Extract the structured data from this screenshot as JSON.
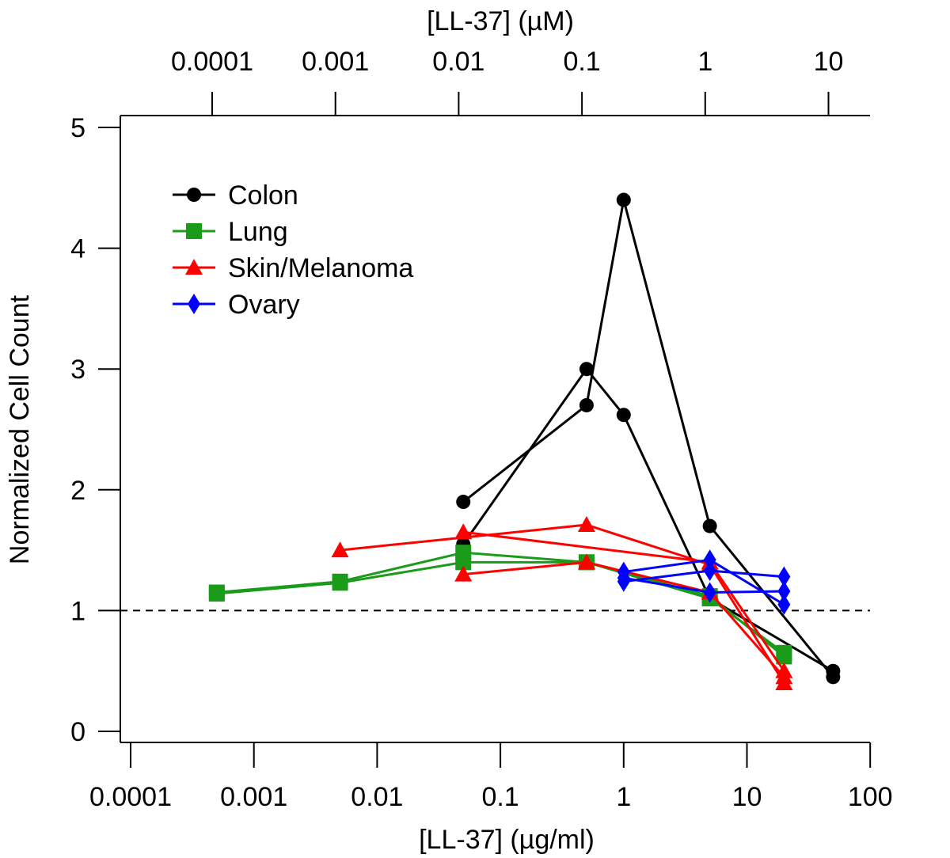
{
  "chart_data": {
    "type": "line",
    "xlabel": "[LL-37] (µg/ml)",
    "top_xlabel": "[LL-37] (µM)",
    "ylabel": "Normalized Cell Count",
    "x_scale": "log",
    "xlim": [
      0.0001,
      100
    ],
    "ylim": [
      0,
      5
    ],
    "x_ticks": [
      0.0001,
      0.001,
      0.01,
      0.1,
      1,
      10,
      100
    ],
    "x_tick_labels": [
      "0.0001",
      "0.001",
      "0.01",
      "0.1",
      "1",
      "10",
      "100"
    ],
    "top_x_ticks": [
      0.0001,
      0.001,
      0.01,
      0.1,
      1,
      10
    ],
    "top_x_tick_labels": [
      "0.0001",
      "0.001",
      "0.01",
      "0.1",
      "1",
      "10"
    ],
    "y_ticks": [
      0,
      1,
      2,
      3,
      4,
      5
    ],
    "y_tick_labels": [
      "0",
      "1",
      "2",
      "3",
      "4",
      "5"
    ],
    "reference_line": {
      "y": 1,
      "style": "dashed"
    },
    "grid": false,
    "legend_position": "top-left",
    "legend": [
      "Colon",
      "Lung",
      "Skin/Melanoma",
      "Ovary"
    ],
    "series": [
      {
        "name": "Colon",
        "color": "#000000",
        "marker": "circle",
        "x": [
          0.05,
          0.5,
          1,
          5,
          50
        ],
        "y": [
          1.9,
          2.7,
          4.4,
          1.7,
          0.45
        ]
      },
      {
        "name": "Colon",
        "color": "#000000",
        "marker": "circle",
        "x": [
          0.05,
          0.5,
          1,
          5,
          50
        ],
        "y": [
          1.55,
          3.0,
          2.62,
          1.1,
          0.5
        ]
      },
      {
        "name": "Lung",
        "color": "#1a9b1a",
        "marker": "square",
        "x": [
          0.0005,
          0.005,
          0.05,
          0.5,
          5,
          20
        ],
        "y": [
          1.15,
          1.24,
          1.48,
          1.4,
          1.12,
          0.62
        ]
      },
      {
        "name": "Lung",
        "color": "#1a9b1a",
        "marker": "square",
        "x": [
          0.0005,
          0.005,
          0.05,
          0.5,
          5,
          20
        ],
        "y": [
          1.14,
          1.23,
          1.4,
          1.4,
          1.1,
          0.65
        ]
      },
      {
        "name": "Skin/Melanoma",
        "color": "#ff0000",
        "marker": "triangle",
        "x": [
          0.005,
          0.5,
          5,
          20
        ],
        "y": [
          1.5,
          1.71,
          1.38,
          0.4
        ]
      },
      {
        "name": "Skin/Melanoma",
        "color": "#ff0000",
        "marker": "triangle",
        "x": [
          0.05,
          5,
          20
        ],
        "y": [
          1.65,
          1.4,
          0.5
        ]
      },
      {
        "name": "Skin/Melanoma",
        "color": "#ff0000",
        "marker": "triangle",
        "x": [
          0.05,
          0.5,
          5,
          20
        ],
        "y": [
          1.3,
          1.4,
          1.15,
          0.45
        ]
      },
      {
        "name": "Ovary",
        "color": "#0000ff",
        "marker": "diamond",
        "x": [
          1,
          5,
          20
        ],
        "y": [
          1.32,
          1.42,
          1.05
        ]
      },
      {
        "name": "Ovary",
        "color": "#0000ff",
        "marker": "diamond",
        "x": [
          1,
          5,
          20
        ],
        "y": [
          1.24,
          1.33,
          1.28
        ]
      },
      {
        "name": "Ovary",
        "color": "#0000ff",
        "marker": "diamond",
        "x": [
          1,
          5,
          20
        ],
        "y": [
          1.27,
          1.15,
          1.16
        ]
      }
    ]
  }
}
